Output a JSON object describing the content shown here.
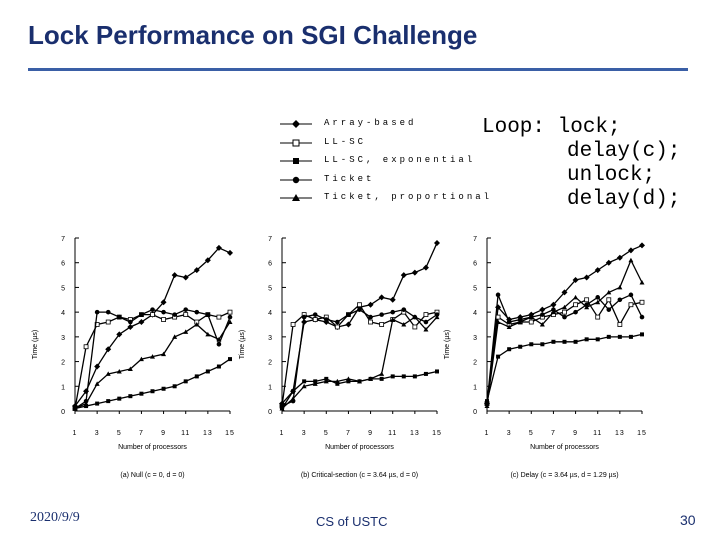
{
  "title": "Lock Performance on SGI Challenge",
  "legend": [
    {
      "label": "Array-based",
      "marker": "diamond"
    },
    {
      "label": "LL-SC",
      "marker": "open-square"
    },
    {
      "label": "LL-SC, exponential",
      "marker": "square"
    },
    {
      "label": "Ticket",
      "marker": "circle"
    },
    {
      "label": "Ticket, proportional",
      "marker": "triangle"
    }
  ],
  "code": [
    "Loop: lock;",
    "delay(c);",
    "unlock;",
    "delay(d);"
  ],
  "chart_data": [
    {
      "type": "line",
      "caption": "(a) Null (c = 0, d = 0)",
      "xlabel": "Number of processors",
      "ylabel": "Time (µs)",
      "x": [
        1,
        2,
        3,
        4,
        5,
        6,
        7,
        8,
        9,
        10,
        11,
        12,
        13,
        14,
        15
      ],
      "xticks": [
        "1",
        "3",
        "5",
        "7",
        "9",
        "11",
        "13",
        "15"
      ],
      "yticks": [
        "0",
        "1",
        "2",
        "3",
        "4",
        "5",
        "6",
        "7"
      ],
      "ylim": [
        0,
        7
      ],
      "series": [
        {
          "name": "Array-based",
          "values": [
            0.2,
            0.8,
            1.8,
            2.5,
            3.1,
            3.4,
            3.6,
            3.9,
            4.4,
            5.5,
            5.4,
            5.7,
            6.1,
            6.6,
            6.4
          ]
        },
        {
          "name": "LL-SC",
          "values": [
            0.1,
            2.6,
            3.5,
            3.6,
            3.8,
            3.7,
            3.9,
            3.9,
            3.7,
            3.8,
            3.9,
            3.6,
            3.9,
            3.8,
            4.0
          ]
        },
        {
          "name": "LL-SC, exponential",
          "values": [
            0.1,
            0.2,
            0.3,
            0.4,
            0.5,
            0.6,
            0.7,
            0.8,
            0.9,
            1.0,
            1.2,
            1.4,
            1.6,
            1.8,
            2.1
          ]
        },
        {
          "name": "Ticket",
          "values": [
            0.1,
            0.4,
            4.0,
            4.0,
            3.8,
            3.6,
            3.9,
            4.1,
            4.0,
            3.9,
            4.1,
            4.0,
            3.9,
            2.7,
            3.8
          ]
        },
        {
          "name": "Ticket, proportional",
          "values": [
            0.1,
            0.3,
            1.1,
            1.5,
            1.6,
            1.7,
            2.1,
            2.2,
            2.3,
            3.0,
            3.2,
            3.5,
            3.1,
            2.9,
            3.6
          ]
        }
      ]
    },
    {
      "type": "line",
      "caption": "(b) Critical-section (c = 3.64 µs, d = 0)",
      "xlabel": "Number of processors",
      "ylabel": "Time (µs)",
      "x": [
        1,
        2,
        3,
        4,
        5,
        6,
        7,
        8,
        9,
        10,
        11,
        12,
        13,
        14,
        15
      ],
      "xticks": [
        "1",
        "3",
        "5",
        "7",
        "9",
        "11",
        "13",
        "15"
      ],
      "yticks": [
        "0",
        "1",
        "2",
        "3",
        "4",
        "5",
        "6",
        "7"
      ],
      "ylim": [
        0,
        7
      ],
      "series": [
        {
          "name": "Array-based",
          "values": [
            0.3,
            0.8,
            3.6,
            3.7,
            3.6,
            3.4,
            3.5,
            4.2,
            4.3,
            4.6,
            4.5,
            5.5,
            5.6,
            5.8,
            6.8
          ]
        },
        {
          "name": "LL-SC",
          "values": [
            0.2,
            3.5,
            3.9,
            3.7,
            3.8,
            3.4,
            3.9,
            4.3,
            3.6,
            3.5,
            3.7,
            4.0,
            3.4,
            3.9,
            4.0
          ]
        },
        {
          "name": "LL-SC, exponential",
          "values": [
            0.1,
            0.8,
            1.2,
            1.2,
            1.3,
            1.1,
            1.2,
            1.2,
            1.3,
            1.3,
            1.4,
            1.4,
            1.4,
            1.5,
            1.6
          ]
        },
        {
          "name": "Ticket",
          "values": [
            0.2,
            0.4,
            3.8,
            3.9,
            3.7,
            3.6,
            3.9,
            4.1,
            3.8,
            3.9,
            4.0,
            4.1,
            3.8,
            3.6,
            3.9
          ]
        },
        {
          "name": "Ticket, proportional",
          "values": [
            0.1,
            0.5,
            1.0,
            1.1,
            1.2,
            1.2,
            1.3,
            1.2,
            1.3,
            1.5,
            3.7,
            3.5,
            3.8,
            3.3,
            3.8
          ]
        }
      ]
    },
    {
      "type": "line",
      "caption": "(c) Delay (c = 3.64 µs, d = 1.29 µs)",
      "xlabel": "Number of processors",
      "ylabel": "Time (µs)",
      "x": [
        1,
        2,
        3,
        4,
        5,
        6,
        7,
        8,
        9,
        10,
        11,
        12,
        13,
        14,
        15
      ],
      "xticks": [
        "1",
        "3",
        "5",
        "7",
        "9",
        "11",
        "13",
        "15"
      ],
      "yticks": [
        "0",
        "1",
        "2",
        "3",
        "4",
        "5",
        "6",
        "7"
      ],
      "ylim": [
        0,
        7
      ],
      "series": [
        {
          "name": "Array-based",
          "values": [
            0.3,
            4.2,
            3.7,
            3.8,
            3.9,
            4.1,
            4.3,
            4.8,
            5.3,
            5.4,
            5.7,
            6.0,
            6.2,
            6.5,
            6.7
          ]
        },
        {
          "name": "LL-SC",
          "values": [
            0.3,
            3.8,
            3.5,
            3.6,
            3.6,
            3.8,
            3.9,
            4.0,
            4.3,
            4.5,
            3.8,
            4.5,
            3.5,
            4.3,
            4.4
          ]
        },
        {
          "name": "LL-SC, exponential",
          "values": [
            0.4,
            2.2,
            2.5,
            2.6,
            2.7,
            2.7,
            2.8,
            2.8,
            2.8,
            2.9,
            2.9,
            3.0,
            3.0,
            3.0,
            3.1
          ]
        },
        {
          "name": "Ticket",
          "values": [
            0.3,
            4.7,
            3.6,
            3.7,
            3.8,
            3.9,
            4.1,
            3.8,
            4.0,
            4.3,
            4.6,
            4.1,
            4.5,
            4.7,
            3.8
          ]
        },
        {
          "name": "Ticket, proportional",
          "values": [
            0.2,
            3.6,
            3.4,
            3.6,
            3.8,
            3.5,
            4.0,
            4.2,
            4.6,
            4.2,
            4.4,
            4.8,
            5.0,
            6.1,
            5.2
          ]
        }
      ]
    }
  ],
  "footer": {
    "date": "2020/9/9",
    "center": "CS of USTC",
    "page": "30"
  }
}
